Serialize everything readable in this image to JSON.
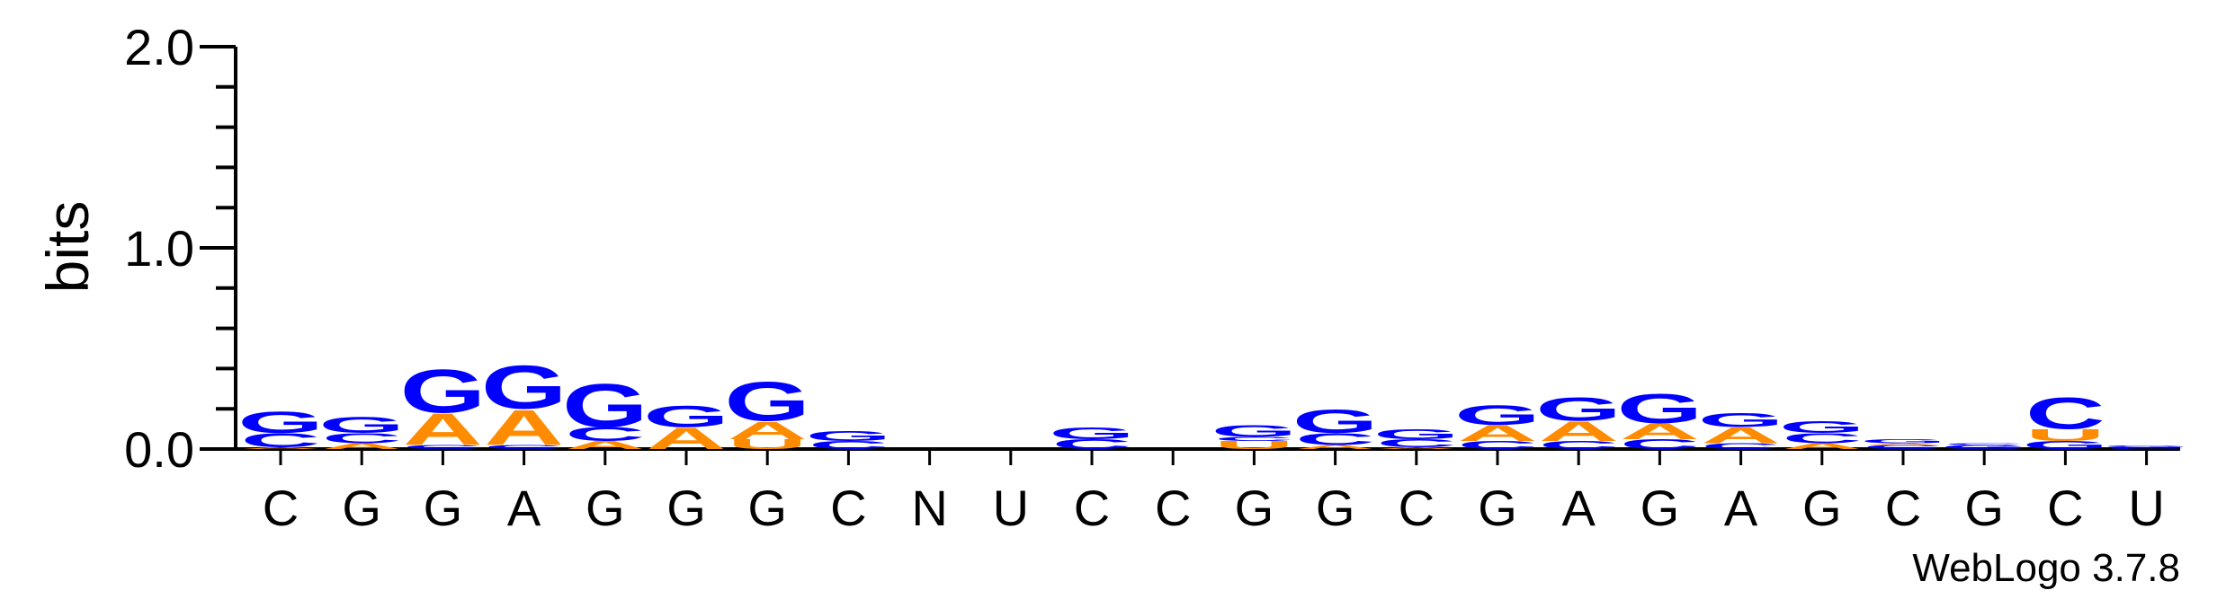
{
  "chart_data": {
    "type": "sequence-logo",
    "ylabel": "bits",
    "ylim": [
      0,
      2.0
    ],
    "yticks": [
      {
        "value": 0.0,
        "label": "0.0"
      },
      {
        "value": 1.0,
        "label": "1.0"
      },
      {
        "value": 2.0,
        "label": "2.0"
      }
    ],
    "minor_tick_step": 0.2,
    "positions": [
      "C",
      "G",
      "G",
      "A",
      "G",
      "G",
      "G",
      "C",
      "N",
      "U",
      "C",
      "C",
      "G",
      "G",
      "C",
      "G",
      "A",
      "G",
      "A",
      "G",
      "C",
      "G",
      "C",
      "U"
    ],
    "colors": {
      "G": "#0000ff",
      "C": "#0000ff",
      "A": "#ff8c00",
      "U": "#ff8c00"
    },
    "stacks": [
      [
        {
          "l": "A",
          "h": 0.01
        },
        {
          "l": "C",
          "h": 0.07
        },
        {
          "l": "G",
          "h": 0.11
        }
      ],
      [
        {
          "l": "A",
          "h": 0.03
        },
        {
          "l": "C",
          "h": 0.05
        },
        {
          "l": "G",
          "h": 0.08
        }
      ],
      [
        {
          "l": "C",
          "h": 0.02
        },
        {
          "l": "A",
          "h": 0.16
        },
        {
          "l": "G",
          "h": 0.22
        }
      ],
      [
        {
          "l": "C",
          "h": 0.02
        },
        {
          "l": "A",
          "h": 0.18
        },
        {
          "l": "G",
          "h": 0.22
        }
      ],
      [
        {
          "l": "A",
          "h": 0.04
        },
        {
          "l": "C",
          "h": 0.07
        },
        {
          "l": "G",
          "h": 0.22
        }
      ],
      [
        {
          "l": "A",
          "h": 0.11
        },
        {
          "l": "G",
          "h": 0.11
        }
      ],
      [
        {
          "l": "U",
          "h": 0.05
        },
        {
          "l": "A",
          "h": 0.09
        },
        {
          "l": "G",
          "h": 0.2
        }
      ],
      [
        {
          "l": "C",
          "h": 0.04
        },
        {
          "l": "G",
          "h": 0.05
        }
      ],
      [],
      [],
      [
        {
          "l": "C",
          "h": 0.05
        },
        {
          "l": "G",
          "h": 0.06
        }
      ],
      [],
      [
        {
          "l": "U",
          "h": 0.04
        },
        {
          "l": "C",
          "h": 0.02
        },
        {
          "l": "G",
          "h": 0.06
        }
      ],
      [
        {
          "l": "A",
          "h": 0.02
        },
        {
          "l": "C",
          "h": 0.06
        },
        {
          "l": "G",
          "h": 0.12
        }
      ],
      [
        {
          "l": "A",
          "h": 0.01
        },
        {
          "l": "C",
          "h": 0.04
        },
        {
          "l": "G",
          "h": 0.05
        }
      ],
      [
        {
          "l": "C",
          "h": 0.04
        },
        {
          "l": "A",
          "h": 0.08
        },
        {
          "l": "G",
          "h": 0.1
        }
      ],
      [
        {
          "l": "C",
          "h": 0.04
        },
        {
          "l": "A",
          "h": 0.1
        },
        {
          "l": "G",
          "h": 0.12
        }
      ],
      [
        {
          "l": "C",
          "h": 0.05
        },
        {
          "l": "A",
          "h": 0.08
        },
        {
          "l": "G",
          "h": 0.15
        }
      ],
      [
        {
          "l": "C",
          "h": 0.03
        },
        {
          "l": "A",
          "h": 0.08
        },
        {
          "l": "G",
          "h": 0.07
        }
      ],
      [
        {
          "l": "A",
          "h": 0.03
        },
        {
          "l": "C",
          "h": 0.05
        },
        {
          "l": "G",
          "h": 0.06
        }
      ],
      [
        {
          "l": "C",
          "h": 0.02
        },
        {
          "l": "A",
          "h": 0.01
        },
        {
          "l": "G",
          "h": 0.02
        }
      ],
      [
        {
          "l": "G",
          "h": 0.02
        },
        {
          "l": "C",
          "h": 0.01
        }
      ],
      [
        {
          "l": "G",
          "h": 0.04
        },
        {
          "l": "U",
          "h": 0.06
        },
        {
          "l": "C",
          "h": 0.16
        }
      ],
      [
        {
          "l": "C",
          "h": 0.01
        },
        {
          "l": "G",
          "h": 0.01
        }
      ]
    ],
    "credit": "WebLogo 3.7.8"
  }
}
